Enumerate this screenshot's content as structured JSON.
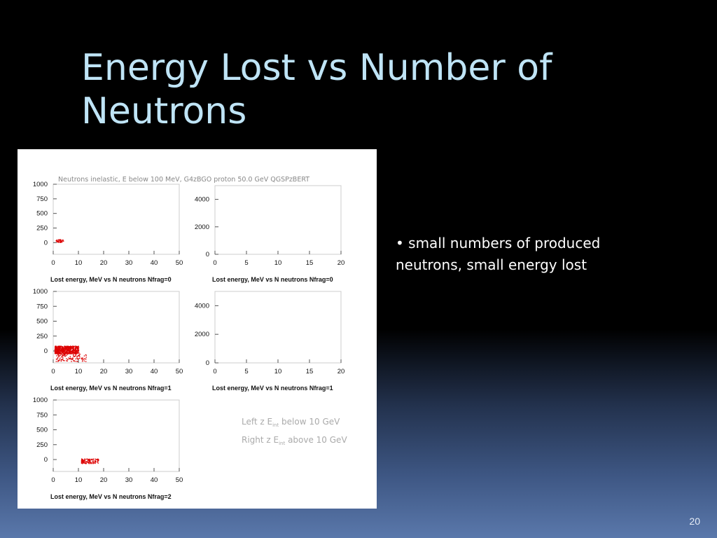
{
  "slide": {
    "title": "Energy Lost vs Number of Neutrons",
    "bullet": "• small numbers of produced neutrons, small energy lost",
    "page_number": "20",
    "colors": {
      "title": "#bfe4f6",
      "text": "#ffffff",
      "points": "#dd0000"
    }
  },
  "figure": {
    "header": "Neutrons inelastic, E below 100 MeV,  G4zBGO proton 50.0 GeV QGSPzBERT",
    "legend_left_prefix": "Left  z E",
    "legend_left_sub": "int",
    "legend_left_suffix": " below 10 GeV",
    "legend_right_prefix": "Right z E",
    "legend_right_sub": "int",
    "legend_right_suffix": " above 10 GeV"
  },
  "chart_data": [
    {
      "type": "scatter",
      "panel": "left",
      "row": 0,
      "title": "Lost energy, MeV vs N neutrons Nfrag=0",
      "xlim": [
        0,
        50
      ],
      "ylim": [
        -200,
        1000
      ],
      "xticks": [
        "0",
        "10",
        "20",
        "30",
        "40",
        "50"
      ],
      "yticks": [
        "0",
        "250",
        "500",
        "750",
        "1000"
      ],
      "clusters": [
        {
          "x": [
            1,
            4
          ],
          "y": [
            10,
            60
          ],
          "count": 45
        }
      ]
    },
    {
      "type": "scatter",
      "panel": "right",
      "row": 0,
      "title": "Lost energy, MeV vs N neutrons Nfrag=0",
      "xlim": [
        0,
        20
      ],
      "ylim": [
        0,
        5000
      ],
      "xticks": [
        "0",
        "5",
        "10",
        "15",
        "20"
      ],
      "yticks": [
        "0",
        "2000",
        "4000"
      ],
      "clusters": []
    },
    {
      "type": "scatter",
      "panel": "left",
      "row": 1,
      "title": "Lost energy, MeV vs N neutrons Nfrag=1",
      "xlim": [
        0,
        50
      ],
      "ylim": [
        -200,
        1000
      ],
      "xticks": [
        "0",
        "10",
        "20",
        "30",
        "40",
        "50"
      ],
      "yticks": [
        "0",
        "250",
        "500",
        "750",
        "1000"
      ],
      "clusters": [
        {
          "x": [
            0.5,
            10
          ],
          "y": [
            -40,
            90
          ],
          "count": 650
        },
        {
          "x": [
            1,
            13
          ],
          "y": [
            -170,
            -40
          ],
          "count": 110
        }
      ]
    },
    {
      "type": "scatter",
      "panel": "right",
      "row": 1,
      "title": "Lost energy, MeV vs N neutrons Nfrag=1",
      "xlim": [
        0,
        20
      ],
      "ylim": [
        0,
        5000
      ],
      "xticks": [
        "0",
        "5",
        "10",
        "15",
        "20"
      ],
      "yticks": [
        "0",
        "2000",
        "4000"
      ],
      "clusters": []
    },
    {
      "type": "scatter",
      "panel": "left",
      "row": 2,
      "title": "Lost energy, MeV vs N neutrons Nfrag=2",
      "xlim": [
        0,
        50
      ],
      "ylim": [
        -200,
        1000
      ],
      "xticks": [
        "0",
        "10",
        "20",
        "30",
        "40",
        "50"
      ],
      "yticks": [
        "0",
        "250",
        "500",
        "750",
        "1000"
      ],
      "clusters": [
        {
          "x": [
            11,
            18
          ],
          "y": [
            -60,
            20
          ],
          "count": 120
        }
      ]
    }
  ]
}
